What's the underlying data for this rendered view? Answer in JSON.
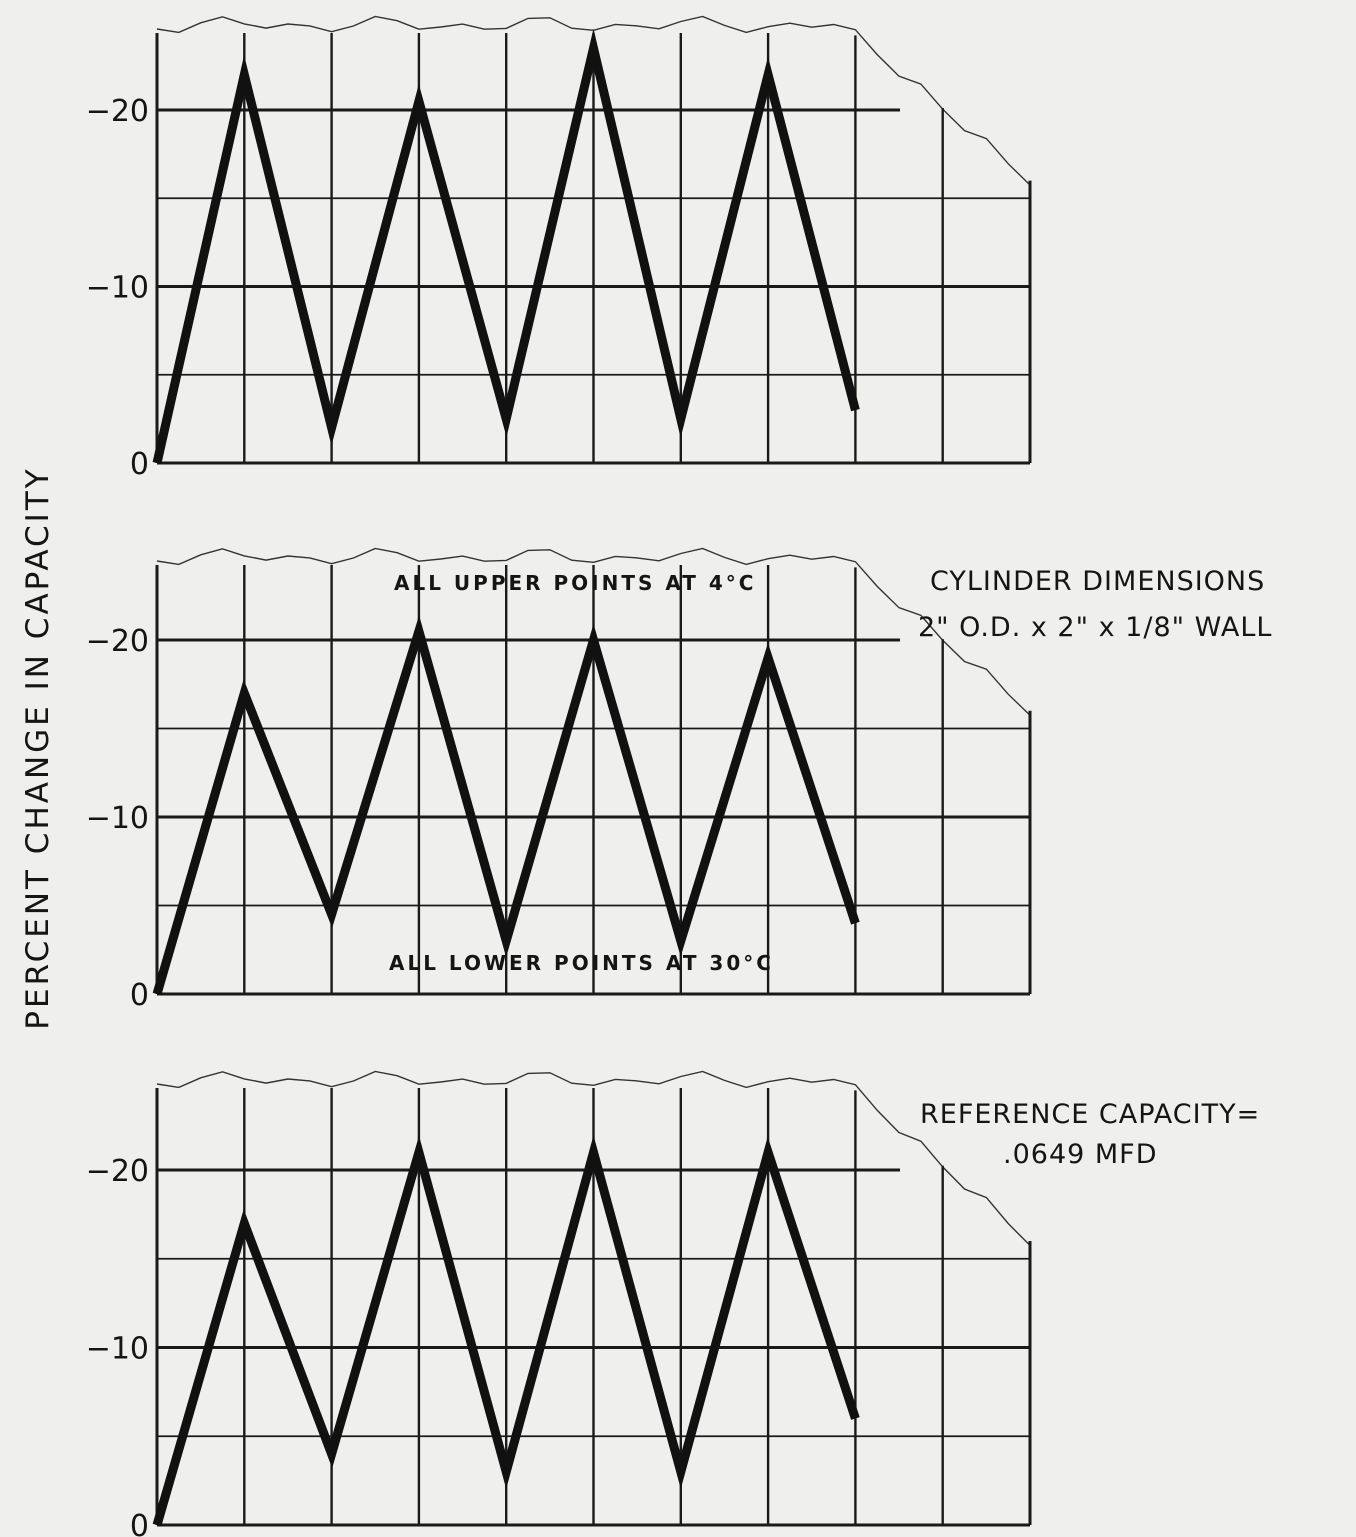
{
  "ylabel": "PERCENT CHANGE IN CAPACITY",
  "annotations": {
    "dimensions_line1": "CYLINDER DIMENSIONS",
    "dimensions_line2": "2\" O.D. x 2\" x 1/8\" WALL",
    "reference_line1": "REFERENCE CAPACITY=",
    "reference_line2": ".0649 MFD"
  },
  "colors": {
    "line": "#111111",
    "grid": "#1a1a1a",
    "background": "#efefed"
  },
  "chart_data": [
    {
      "type": "line",
      "yticks": [
        "0",
        "−10",
        "−20"
      ],
      "ylim": [
        0,
        25
      ],
      "xlim": [
        0,
        10
      ],
      "grid": true,
      "x": [
        0,
        1,
        2,
        3,
        4,
        5,
        6,
        7,
        8
      ],
      "series": [
        {
          "values": [
            0,
            22,
            2,
            20.5,
            2.5,
            23.5,
            2.5,
            22,
            3
          ]
        }
      ],
      "annotations": []
    },
    {
      "type": "line",
      "yticks": [
        "0",
        "−10",
        "−20"
      ],
      "ylim": [
        0,
        25
      ],
      "xlim": [
        0,
        10
      ],
      "grid": true,
      "x": [
        0,
        1,
        2,
        3,
        4,
        5,
        6,
        7,
        8
      ],
      "series": [
        {
          "values": [
            0,
            17,
            4.5,
            20.5,
            3,
            20,
            3,
            19,
            4
          ]
        }
      ],
      "annotations": [
        "ALL UPPER POINTS AT 4°C",
        "ALL LOWER POINTS AT 30°C"
      ]
    },
    {
      "type": "line",
      "yticks": [
        "0",
        "−10",
        "−20"
      ],
      "ylim": [
        0,
        25
      ],
      "xlim": [
        0,
        10
      ],
      "grid": true,
      "x": [
        0,
        1,
        2,
        3,
        4,
        5,
        6,
        7,
        8
      ],
      "series": [
        {
          "values": [
            0,
            17,
            4,
            21,
            3,
            21,
            3,
            21,
            6
          ]
        }
      ],
      "annotations": []
    }
  ]
}
